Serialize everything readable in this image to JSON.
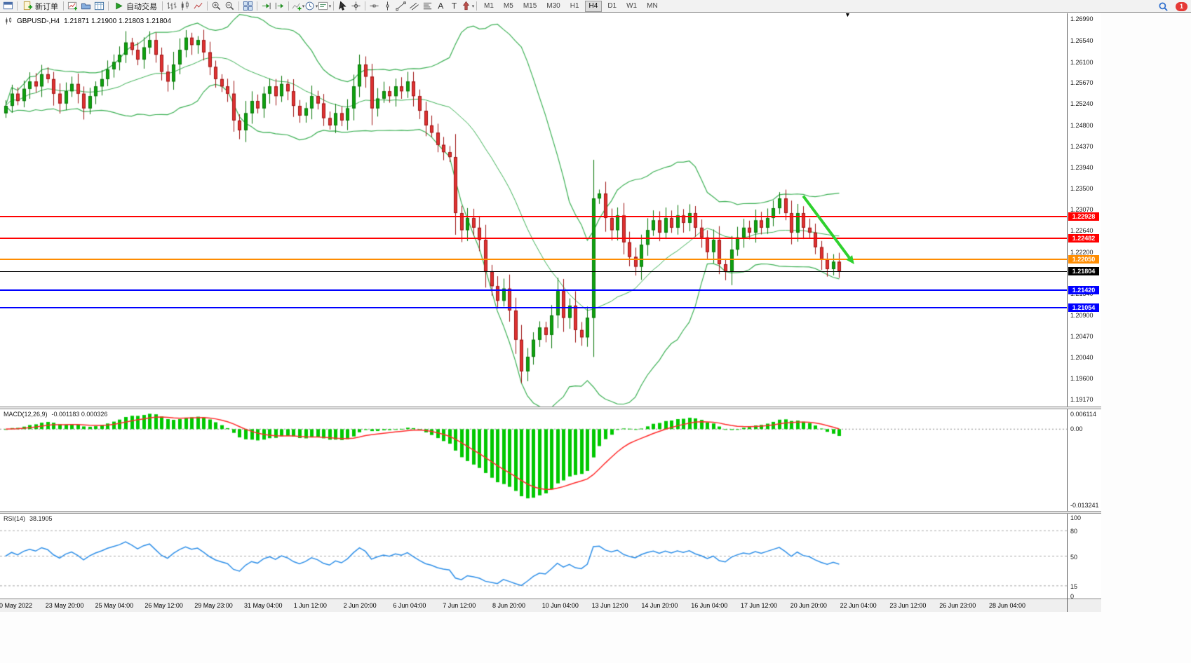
{
  "icons": {
    "caret": "▾",
    "shift_marker": "▼"
  },
  "topright": {
    "badge": "1"
  },
  "toolbar": {
    "groups": [
      {
        "items": [
          {
            "name": "terminal-icon",
            "icon": "terminal"
          }
        ]
      },
      {
        "items": [
          {
            "name": "new-order-button",
            "icon": "neworder",
            "label": "新订单"
          }
        ]
      },
      {
        "items": [
          {
            "name": "new-chart-icon",
            "icon": "newchart"
          },
          {
            "name": "profiles-icon",
            "icon": "profiles"
          },
          {
            "name": "data-window-icon",
            "icon": "datawindow"
          }
        ]
      },
      {
        "items": [
          {
            "name": "autotrade-button",
            "icon": "autotrade",
            "label": "自动交易"
          }
        ]
      },
      {
        "items": [
          {
            "name": "bar-chart-icon",
            "icon": "bars"
          },
          {
            "name": "candlestick-chart-icon",
            "icon": "candles"
          },
          {
            "name": "line-chart-icon",
            "icon": "linechart"
          }
        ]
      },
      {
        "items": [
          {
            "name": "zoom-in-icon",
            "icon": "zoomin"
          },
          {
            "name": "zoom-out-icon",
            "icon": "zoomout"
          }
        ]
      },
      {
        "items": [
          {
            "name": "tile-windows-icon",
            "icon": "tile"
          }
        ]
      },
      {
        "items": [
          {
            "name": "auto-scroll-icon",
            "icon": "autoscroll"
          },
          {
            "name": "chart-shift-icon",
            "icon": "chartshift"
          }
        ]
      },
      {
        "items": [
          {
            "name": "indicators-icon",
            "icon": "indicators",
            "caret": true
          },
          {
            "name": "periods-icon",
            "icon": "periods",
            "caret": true
          },
          {
            "name": "templates-icon",
            "icon": "templates",
            "caret": true
          }
        ]
      },
      {
        "items": [
          {
            "name": "cursor-icon",
            "icon": "cursor"
          },
          {
            "name": "crosshair-icon",
            "icon": "crosshair"
          }
        ]
      },
      {
        "items": [
          {
            "name": "horizontal-line-icon",
            "icon": "hline"
          },
          {
            "name": "vertical-line-icon",
            "icon": "vline"
          },
          {
            "name": "trendline-icon",
            "icon": "trendline"
          },
          {
            "name": "channel-icon",
            "icon": "channel"
          },
          {
            "name": "fibonacci-icon",
            "icon": "fibo"
          },
          {
            "name": "text-icon",
            "icon": "text"
          },
          {
            "name": "label-icon",
            "icon": "label"
          },
          {
            "name": "arrows-icon",
            "icon": "arrows",
            "caret": true
          }
        ]
      }
    ],
    "timeframes": [
      {
        "label": "M1"
      },
      {
        "label": "M5"
      },
      {
        "label": "M15"
      },
      {
        "label": "M30"
      },
      {
        "label": "H1"
      },
      {
        "label": "H4",
        "active": true
      },
      {
        "label": "D1"
      },
      {
        "label": "W1"
      },
      {
        "label": "MN"
      }
    ]
  },
  "chart_header": {
    "title": "GBPUSD-,H4",
    "ohlc": "1.21871 1.21900 1.21803 1.21804"
  },
  "chart_data": {
    "type": "candlestick",
    "symbol": "GBPUSD-",
    "timeframe": "H4",
    "price_axis_labels": [
      "1.26990",
      "1.26540",
      "1.26100",
      "1.25670",
      "1.25240",
      "1.24800",
      "1.24370",
      "1.23940",
      "1.23500",
      "1.23070",
      "1.22640",
      "1.22200",
      "1.21340",
      "1.20900",
      "1.20470",
      "1.20040",
      "1.19600",
      "1.19170"
    ],
    "price_min": 1.1917,
    "price_max": 1.2699,
    "time_labels": [
      "20 May 2022",
      "23 May 20:00",
      "25 May 04:00",
      "26 May 12:00",
      "29 May 23:00",
      "31 May 04:00",
      "1 Jun 12:00",
      "2 Jun 20:00",
      "6 Jun 04:00",
      "7 Jun 12:00",
      "8 Jun 20:00",
      "10 Jun 04:00",
      "13 Jun 12:00",
      "14 Jun 20:00",
      "16 Jun 04:00",
      "17 Jun 12:00",
      "20 Jun 20:00",
      "22 Jun 04:00",
      "23 Jun 12:00",
      "26 Jun 23:00",
      "28 Jun 04:00"
    ],
    "closes": [
      1.252,
      1.2545,
      1.253,
      1.2555,
      1.257,
      1.256,
      1.2585,
      1.2575,
      1.2545,
      1.2525,
      1.255,
      1.2565,
      1.2545,
      1.2515,
      1.254,
      1.256,
      1.2575,
      1.2595,
      1.261,
      1.2625,
      1.265,
      1.2635,
      1.2615,
      1.264,
      1.2655,
      1.2625,
      1.259,
      1.257,
      1.2605,
      1.2635,
      1.266,
      1.2645,
      1.2655,
      1.263,
      1.26,
      1.2575,
      1.256,
      1.2545,
      1.249,
      1.247,
      1.2505,
      1.253,
      1.2515,
      1.2545,
      1.256,
      1.254,
      1.2565,
      1.255,
      1.252,
      1.25,
      1.2515,
      1.254,
      1.2525,
      1.2495,
      1.248,
      1.2505,
      1.249,
      1.2515,
      1.256,
      1.2605,
      1.258,
      1.2515,
      1.2535,
      1.255,
      1.254,
      1.256,
      1.255,
      1.257,
      1.254,
      1.251,
      1.248,
      1.2465,
      1.244,
      1.2425,
      1.2415,
      1.23,
      1.2265,
      1.229,
      1.227,
      1.2245,
      1.218,
      1.215,
      1.212,
      1.2145,
      1.21,
      1.204,
      1.1975,
      1.2005,
      1.204,
      1.2065,
      1.205,
      1.209,
      1.214,
      1.2085,
      1.211,
      1.206,
      1.2045,
      1.2085,
      1.233,
      1.234,
      1.229,
      1.2265,
      1.2295,
      1.224,
      1.221,
      1.219,
      1.2235,
      1.2265,
      1.2285,
      1.226,
      1.229,
      1.227,
      1.2295,
      1.228,
      1.23,
      1.227,
      1.225,
      1.222,
      1.2245,
      1.2195,
      1.218,
      1.2225,
      1.225,
      1.227,
      1.226,
      1.2285,
      1.227,
      1.229,
      1.231,
      1.233,
      1.23,
      1.226,
      1.23,
      1.227,
      1.226,
      1.223,
      1.2205,
      1.2185,
      1.22,
      1.21804
    ],
    "note": "opens equal previous close; highs and lows approximated from the visual",
    "levels": [
      {
        "label": "1.22928",
        "price": 1.22928,
        "color": "#ff0000"
      },
      {
        "label": "1.22482",
        "price": 1.22482,
        "color": "#ff0000"
      },
      {
        "label": "1.22050",
        "price": 1.2205,
        "color": "#ff8c00"
      },
      {
        "label": "1.21804",
        "price": 1.21804,
        "color": "#000000",
        "current": true
      },
      {
        "label": "1.21420",
        "price": 1.2142,
        "color": "#0000ff"
      },
      {
        "label": "1.21054",
        "price": 1.21054,
        "color": "#0000ff"
      }
    ],
    "trend_arrow": {
      "from_bar": 133,
      "from_price": 1.2335,
      "to_bar": 141.5,
      "to_price": 1.2195,
      "color": "#2fd12f"
    },
    "bollinger": {
      "period": 20,
      "deviation": 2,
      "color": "#3cb054"
    },
    "candle_colors": {
      "up": "#0fa30f",
      "up_border": "#077607",
      "down": "#e03232",
      "down_border": "#9e1212"
    },
    "macd": {
      "label": "MACD(12,26,9)",
      "values_text": "-0.001183 0.000326",
      "axis_top": "0.006114",
      "axis_zero": "0.00",
      "axis_bottom": "-0.013241",
      "hist_color": "#00c800",
      "signal_color": "#ff2a2a"
    },
    "rsi": {
      "label": "RSI(14)",
      "value_text": "38.1905",
      "axis_labels": [
        "100",
        "80",
        "50",
        "15",
        "0"
      ],
      "levels": [
        80,
        50,
        15
      ],
      "line_color": "#2e8fe8"
    }
  }
}
